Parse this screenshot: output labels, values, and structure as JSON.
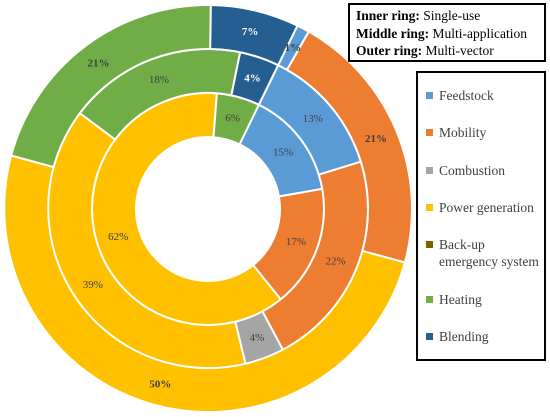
{
  "chart_data": {
    "type": "pie",
    "variant": "donut",
    "categories": [
      "Feedstock",
      "Mobility",
      "Combustion",
      "Power generation",
      "Back-up emergency system",
      "Heating",
      "Blending"
    ],
    "colors": [
      "#5B9BD5",
      "#ED7D31",
      "#A5A5A5",
      "#FFC000",
      "#7F6000",
      "#70AD47",
      "#255E91"
    ],
    "series": [
      {
        "ring_label": "Inner ring:",
        "name": "Single-use",
        "values": [
          15,
          17,
          0,
          62,
          0,
          6,
          0
        ]
      },
      {
        "ring_label": "Middle ring:",
        "name": "Multi-application",
        "values": [
          13,
          22,
          4,
          39,
          0,
          18,
          4
        ]
      },
      {
        "ring_label": "Outer ring:",
        "name": "Multi-vector",
        "values": [
          1,
          21,
          0,
          50,
          0,
          21,
          7
        ]
      }
    ],
    "value_suffix": "%",
    "legend_placement": "right"
  }
}
